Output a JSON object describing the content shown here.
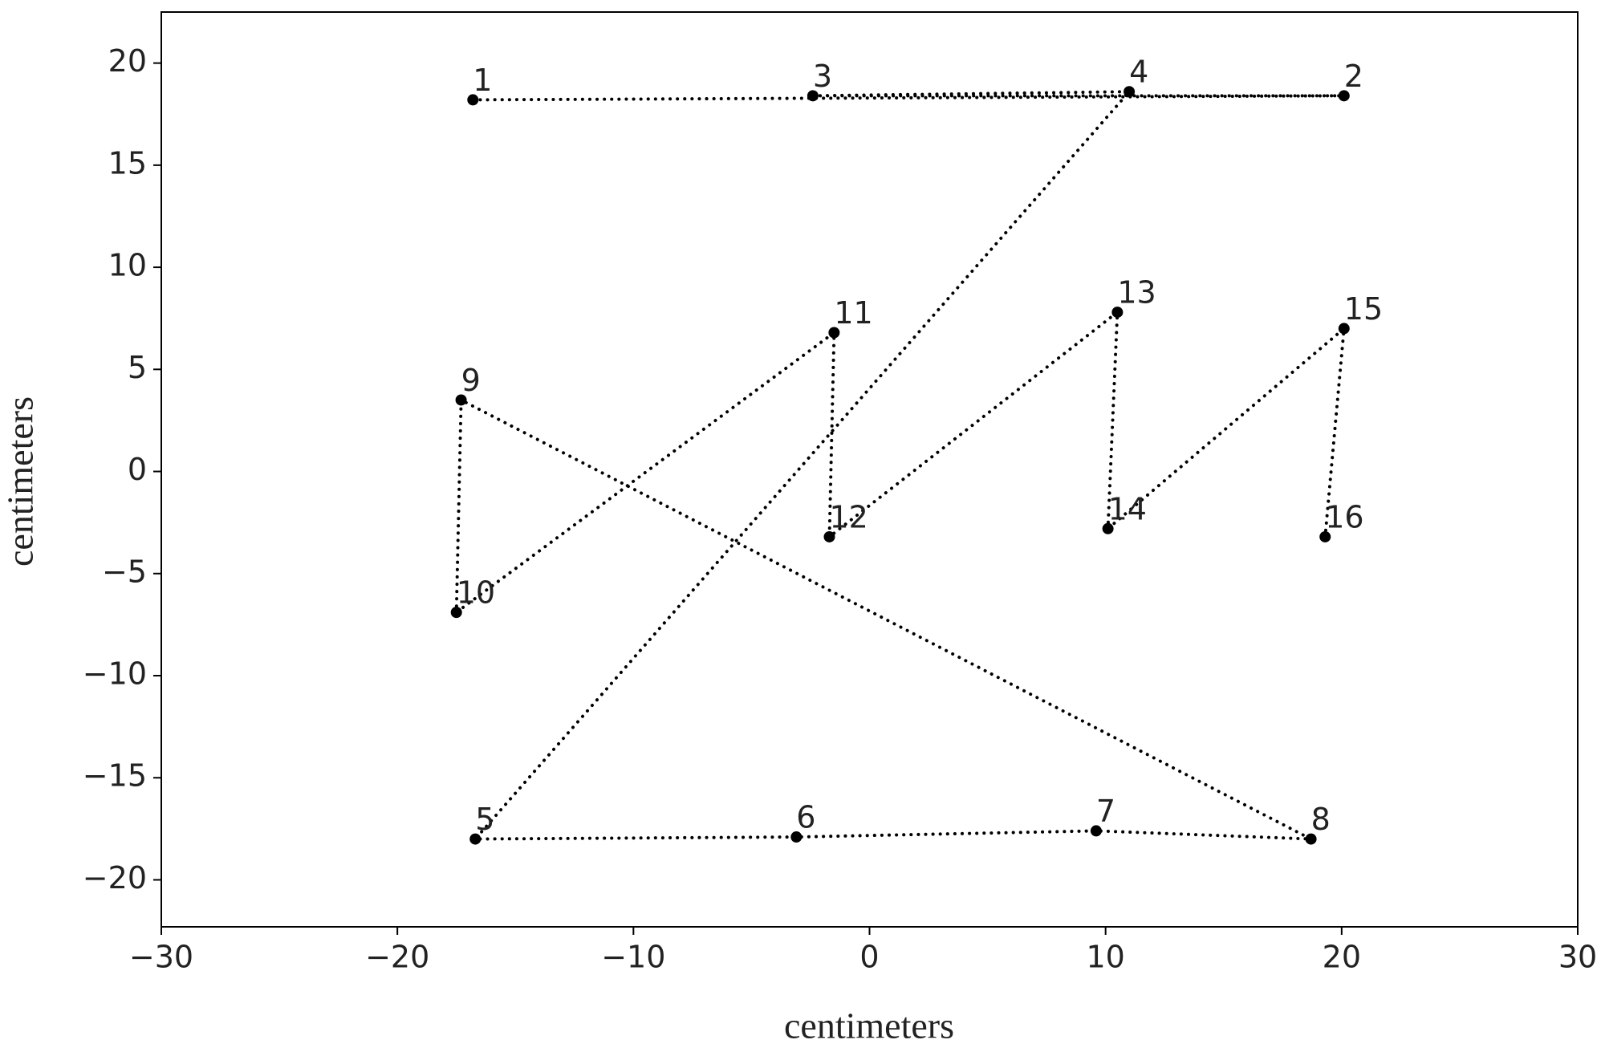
{
  "chart_data": {
    "type": "line",
    "xlabel": "centimeters",
    "ylabel": "centimeters",
    "x": [
      -16.8,
      20.1,
      -2.4,
      11.0,
      -16.7,
      -3.1,
      9.6,
      18.7,
      -17.3,
      -17.5,
      -1.5,
      -1.7,
      10.5,
      10.1,
      20.1,
      19.3
    ],
    "values": [
      18.2,
      18.4,
      18.4,
      18.6,
      -18.0,
      -17.9,
      -17.6,
      -18.0,
      3.5,
      -6.9,
      6.8,
      -3.2,
      7.8,
      -2.8,
      7.0,
      -3.2
    ],
    "point_labels": [
      "1",
      "2",
      "3",
      "4",
      "5",
      "6",
      "7",
      "8",
      "9",
      "10",
      "11",
      "12",
      "13",
      "14",
      "15",
      "16"
    ],
    "color": "#000000",
    "line_style": "dotted",
    "markers": true,
    "xlim": [
      -30,
      30
    ],
    "ylim": [
      -22.3,
      22.5
    ],
    "xticks": [
      {
        "value": -30,
        "label": "−30"
      },
      {
        "value": -20,
        "label": "−20"
      },
      {
        "value": -10,
        "label": "−10"
      },
      0,
      10,
      20,
      30
    ],
    "yticks": [
      {
        "value": -20,
        "label": "−20"
      },
      {
        "value": -15,
        "label": "−15"
      },
      {
        "value": -10,
        "label": "−10"
      },
      {
        "value": -5,
        "label": "−5"
      },
      0,
      5,
      10,
      15,
      20
    ],
    "grid": false
  }
}
